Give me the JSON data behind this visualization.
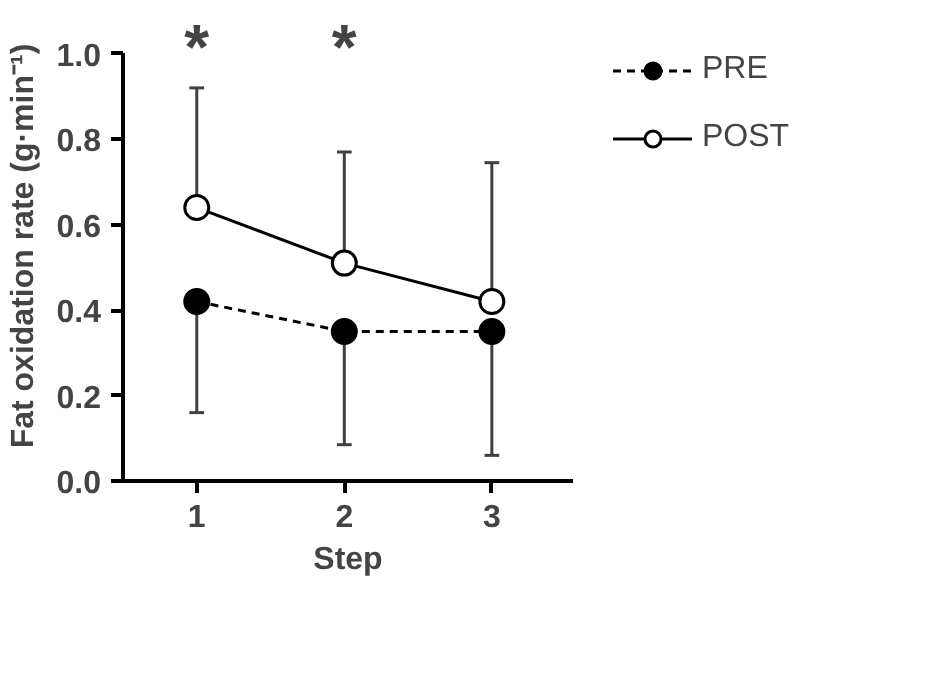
{
  "chart_data": {
    "type": "line",
    "xlabel": "Step",
    "ylabel": "Fat oxidation rate (g·min⁻¹)",
    "x": [
      1,
      2,
      3
    ],
    "xlim": [
      0.5,
      3.55
    ],
    "xticks": [
      1,
      2,
      3
    ],
    "ylim": [
      0,
      1.0
    ],
    "yticks": [
      {
        "value": 0,
        "label": "0.0"
      },
      0.2,
      0.4,
      0.6,
      0.8,
      {
        "value": 1.0,
        "label": "1.0"
      }
    ],
    "series": [
      {
        "name": "PRE",
        "color": "#000000",
        "values": [
          0.42,
          0.35,
          0.35
        ],
        "line_style": "dashed",
        "errors": [
          [
            0.16,
            0.42
          ],
          [
            0.085,
            0.35
          ],
          [
            0.06,
            0.35
          ]
        ]
      },
      {
        "name": "POST",
        "color": "#000000",
        "values": [
          0.64,
          0.51,
          0.42
        ],
        "line_style": "solid",
        "errors": [
          [
            0.64,
            0.92
          ],
          [
            0.51,
            0.77
          ],
          [
            0.42,
            0.745
          ]
        ]
      }
    ],
    "marker": "circle",
    "grid": false,
    "legend": "top right",
    "annotations": [
      "*",
      "*"
    ]
  }
}
